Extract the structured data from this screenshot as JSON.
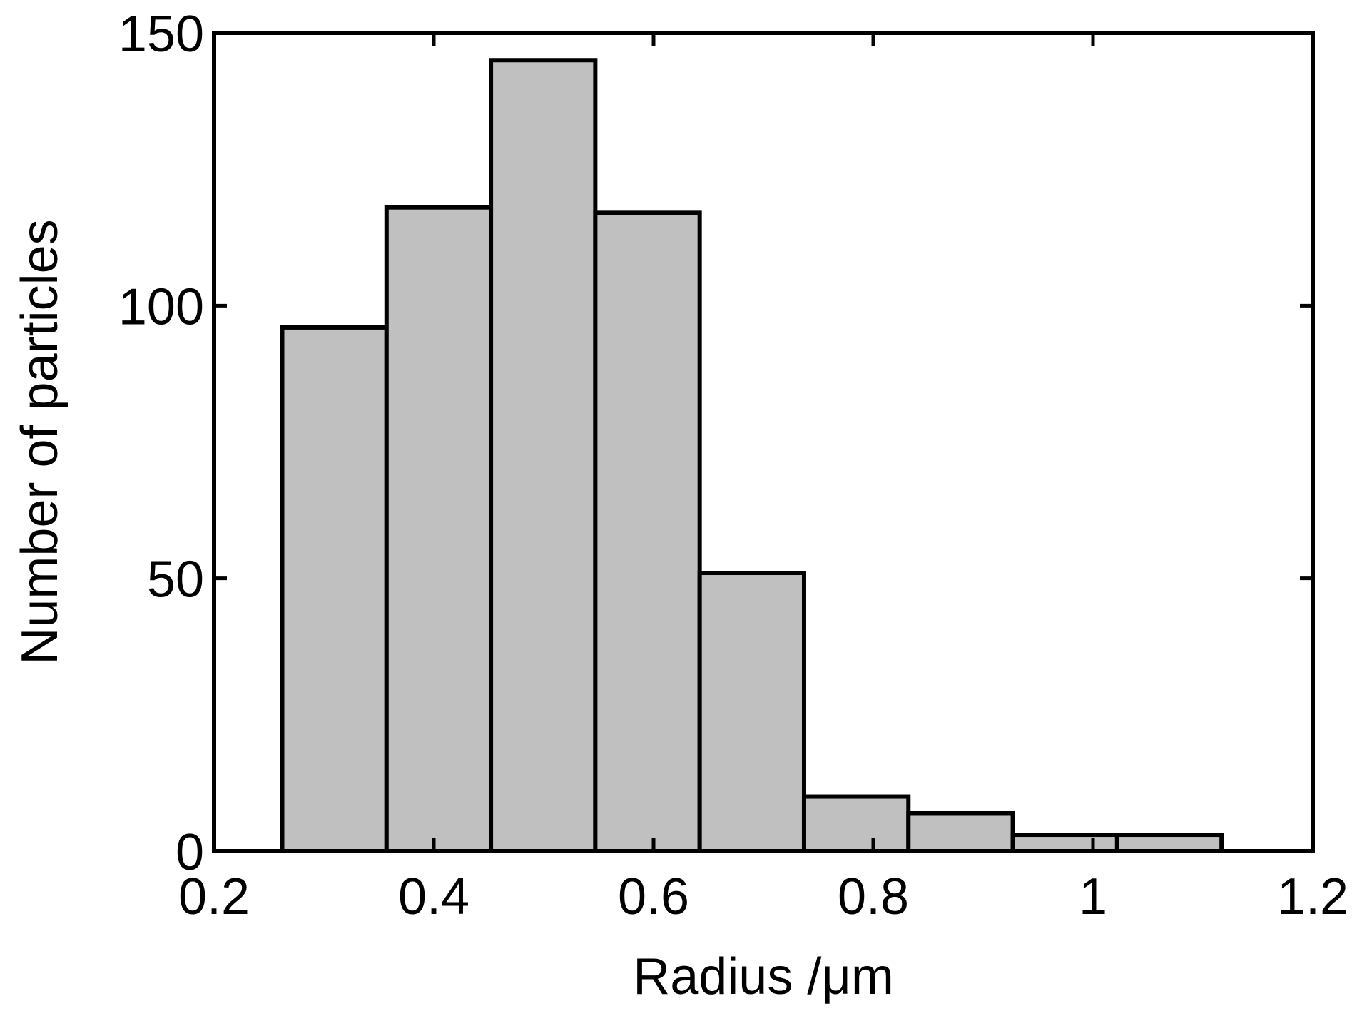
{
  "chart_data": {
    "type": "bar",
    "title": "",
    "xlabel": "Radius /μm",
    "ylabel": "Number of particles",
    "xlim": [
      0.2,
      1.2
    ],
    "ylim": [
      0,
      150
    ],
    "xticks": [
      0.2,
      0.4,
      0.6,
      0.8,
      1.0,
      1.2
    ],
    "xtick_labels": [
      "0.2",
      "0.4",
      "0.6",
      "0.8",
      "1",
      "1.2"
    ],
    "yticks": [
      0,
      50,
      100,
      150
    ],
    "ytick_labels": [
      "0",
      "50",
      "100",
      "150"
    ],
    "grid": false,
    "legend": "none",
    "bar_fill": "#c0c0c0",
    "bar_edge": "#000000",
    "bins": [
      {
        "x0": 0.262,
        "x1": 0.357,
        "count": 96
      },
      {
        "x0": 0.357,
        "x1": 0.452,
        "count": 118
      },
      {
        "x0": 0.452,
        "x1": 0.547,
        "count": 145
      },
      {
        "x0": 0.547,
        "x1": 0.642,
        "count": 117
      },
      {
        "x0": 0.642,
        "x1": 0.737,
        "count": 51
      },
      {
        "x0": 0.737,
        "x1": 0.832,
        "count": 10
      },
      {
        "x0": 0.832,
        "x1": 0.927,
        "count": 7
      },
      {
        "x0": 0.927,
        "x1": 1.022,
        "count": 3
      },
      {
        "x0": 1.022,
        "x1": 1.117,
        "count": 3
      }
    ]
  }
}
